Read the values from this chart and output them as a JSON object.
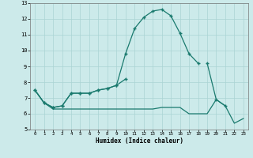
{
  "xlabel": "Humidex (Indice chaleur)",
  "x": [
    0,
    1,
    2,
    3,
    4,
    5,
    6,
    7,
    8,
    9,
    10,
    11,
    12,
    13,
    14,
    15,
    16,
    17,
    18,
    19,
    20,
    21,
    22,
    23
  ],
  "line1": [
    7.5,
    6.7,
    6.4,
    6.5,
    7.3,
    7.3,
    7.3,
    7.5,
    7.6,
    7.8,
    9.8,
    11.4,
    12.1,
    12.5,
    12.6,
    12.2,
    11.1,
    9.8,
    9.2,
    null,
    null,
    null,
    null,
    null
  ],
  "line2": [
    7.5,
    6.7,
    6.4,
    6.5,
    7.3,
    7.3,
    7.3,
    7.5,
    7.6,
    7.8,
    8.2,
    null,
    null,
    null,
    null,
    null,
    null,
    null,
    null,
    9.2,
    6.9,
    6.5,
    null,
    null
  ],
  "line3": [
    7.5,
    6.7,
    6.3,
    6.3,
    6.3,
    6.3,
    6.3,
    6.3,
    6.3,
    6.3,
    6.3,
    6.3,
    6.3,
    6.3,
    6.4,
    6.4,
    6.4,
    6.0,
    6.0,
    6.0,
    6.9,
    6.5,
    5.4,
    5.7
  ],
  "color": "#1a7a6e",
  "bg_color": "#cceaea",
  "grid_color": "#aad4d4",
  "ylim": [
    5,
    13
  ],
  "xlim": [
    -0.5,
    23.5
  ],
  "yticks": [
    5,
    6,
    7,
    8,
    9,
    10,
    11,
    12,
    13
  ],
  "xticks": [
    0,
    1,
    2,
    3,
    4,
    5,
    6,
    7,
    8,
    9,
    10,
    11,
    12,
    13,
    14,
    15,
    16,
    17,
    18,
    19,
    20,
    21,
    22,
    23
  ]
}
